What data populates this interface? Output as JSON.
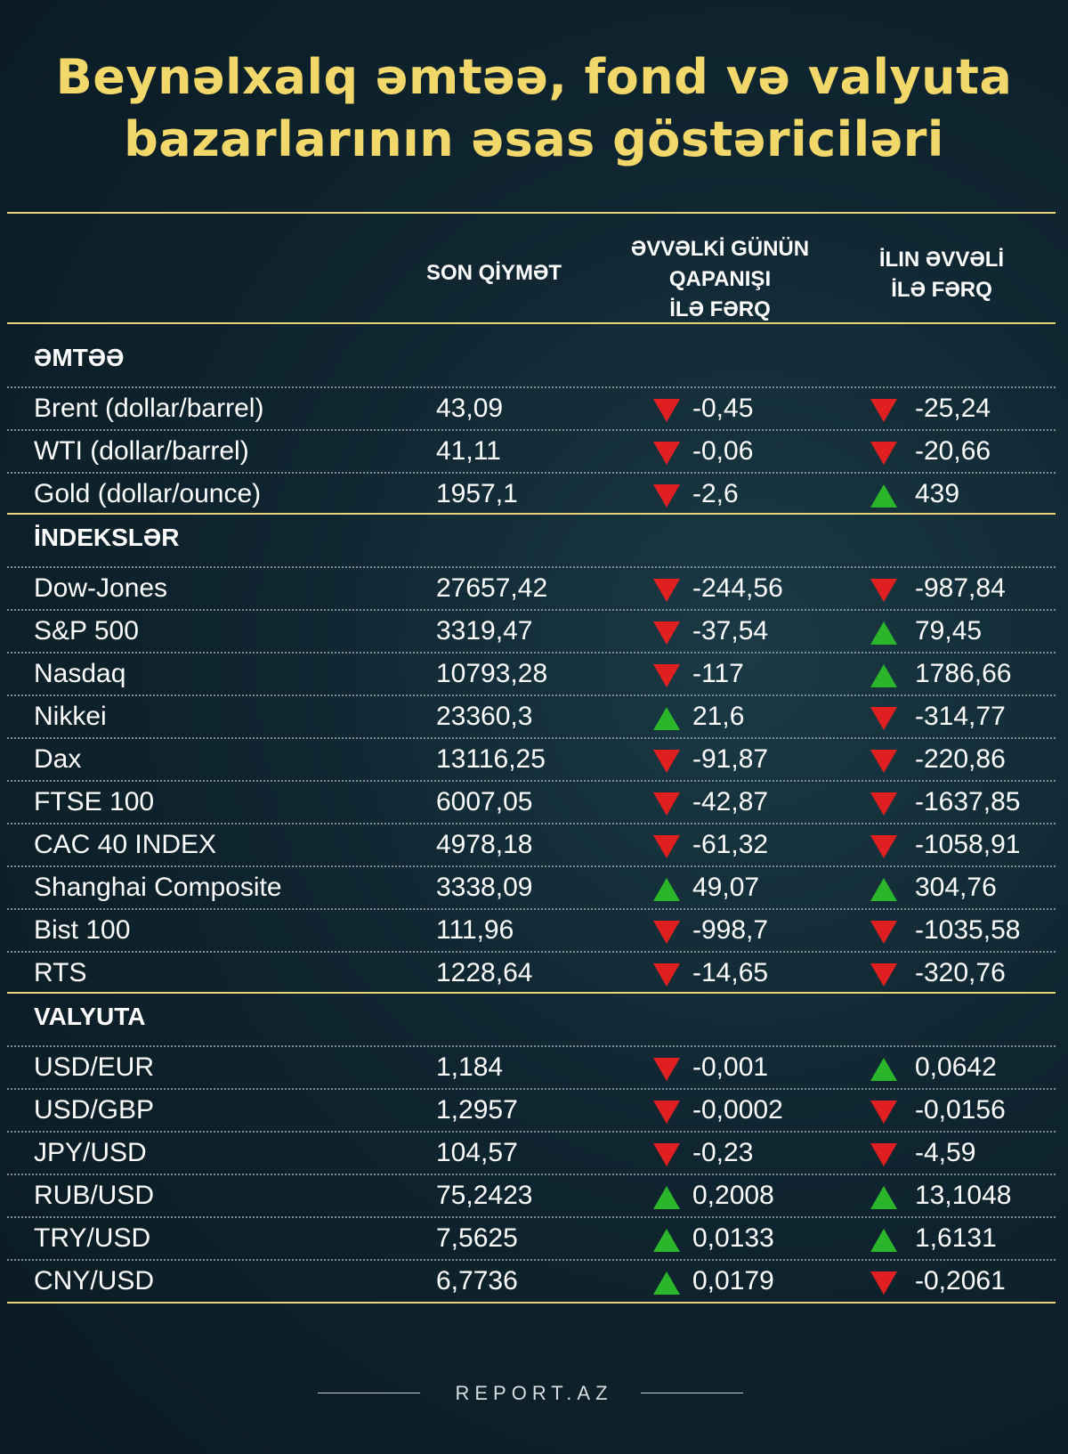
{
  "title": [
    "Beynəlxalq əmtəə, fond və valyuta",
    "bazarlarının əsas göstəriciləri"
  ],
  "columns": {
    "price": "SON QİYMƏT",
    "day": [
      "ƏVVƏLKİ GÜNÜN",
      "QAPANIŞI",
      "İLƏ FƏRQ"
    ],
    "year": [
      "İLIN ƏVVƏLİ",
      "İLƏ FƏRQ"
    ]
  },
  "colors": {
    "title": "#f2d86a",
    "up": "#2bb52b",
    "down": "#e02020",
    "rule": "#e8d27a"
  },
  "sections": [
    {
      "name": "ƏMTƏƏ",
      "rows": [
        {
          "name": "Brent (dollar/barrel)",
          "price": "43,09",
          "day": "-0,45",
          "day_dir": "down",
          "year": "-25,24",
          "year_dir": "down"
        },
        {
          "name": "WTI (dollar/barrel)",
          "price": "41,11",
          "day": "-0,06",
          "day_dir": "down",
          "year": "-20,66",
          "year_dir": "down"
        },
        {
          "name": "Gold (dollar/ounce)",
          "price": "1957,1",
          "day": "-2,6",
          "day_dir": "down",
          "year": "439",
          "year_dir": "up"
        }
      ]
    },
    {
      "name": "İNDEKSLƏR",
      "rows": [
        {
          "name": "Dow-Jones",
          "price": "27657,42",
          "day": "-244,56",
          "day_dir": "down",
          "year": "-987,84",
          "year_dir": "down"
        },
        {
          "name": "S&P 500",
          "price": "3319,47",
          "day": "-37,54",
          "day_dir": "down",
          "year": "79,45",
          "year_dir": "up"
        },
        {
          "name": "Nasdaq",
          "price": "10793,28",
          "day": "-117",
          "day_dir": "down",
          "year": "1786,66",
          "year_dir": "up"
        },
        {
          "name": "Nikkei",
          "price": "23360,3",
          "day": "21,6",
          "day_dir": "up",
          "year": "-314,77",
          "year_dir": "down"
        },
        {
          "name": "Dax",
          "price": "13116,25",
          "day": "-91,87",
          "day_dir": "down",
          "year": "-220,86",
          "year_dir": "down"
        },
        {
          "name": "FTSE 100",
          "price": "6007,05",
          "day": "-42,87",
          "day_dir": "down",
          "year": "-1637,85",
          "year_dir": "down"
        },
        {
          "name": "CAC 40 INDEX",
          "price": "4978,18",
          "day": "-61,32",
          "day_dir": "down",
          "year": "-1058,91",
          "year_dir": "down"
        },
        {
          "name": "Shanghai Composite",
          "price": "3338,09",
          "day": "49,07",
          "day_dir": "up",
          "year": "304,76",
          "year_dir": "up"
        },
        {
          "name": "Bist 100",
          "price": "111,96",
          "day": "-998,7",
          "day_dir": "down",
          "year": "-1035,58",
          "year_dir": "down"
        },
        {
          "name": "RTS",
          "price": "1228,64",
          "day": "-14,65",
          "day_dir": "down",
          "year": "-320,76",
          "year_dir": "down"
        }
      ]
    },
    {
      "name": "VALYUTA",
      "rows": [
        {
          "name": "USD/EUR",
          "price": "1,184",
          "day": "-0,001",
          "day_dir": "down",
          "year": "0,0642",
          "year_dir": "up"
        },
        {
          "name": "USD/GBP",
          "price": "1,2957",
          "day": "-0,0002",
          "day_dir": "down",
          "year": "-0,0156",
          "year_dir": "down"
        },
        {
          "name": "JPY/USD",
          "price": "104,57",
          "day": "-0,23",
          "day_dir": "down",
          "year": "-4,59",
          "year_dir": "down"
        },
        {
          "name": "RUB/USD",
          "price": "75,2423",
          "day": "0,2008",
          "day_dir": "up",
          "year": "13,1048",
          "year_dir": "up"
        },
        {
          "name": "TRY/USD",
          "price": "7,5625",
          "day": "0,0133",
          "day_dir": "up",
          "year": "1,6131",
          "year_dir": "up"
        },
        {
          "name": "CNY/USD",
          "price": "6,7736",
          "day": "0,0179",
          "day_dir": "up",
          "year": "-0,2061",
          "year_dir": "down"
        }
      ]
    }
  ],
  "footer": "REPORT.AZ"
}
